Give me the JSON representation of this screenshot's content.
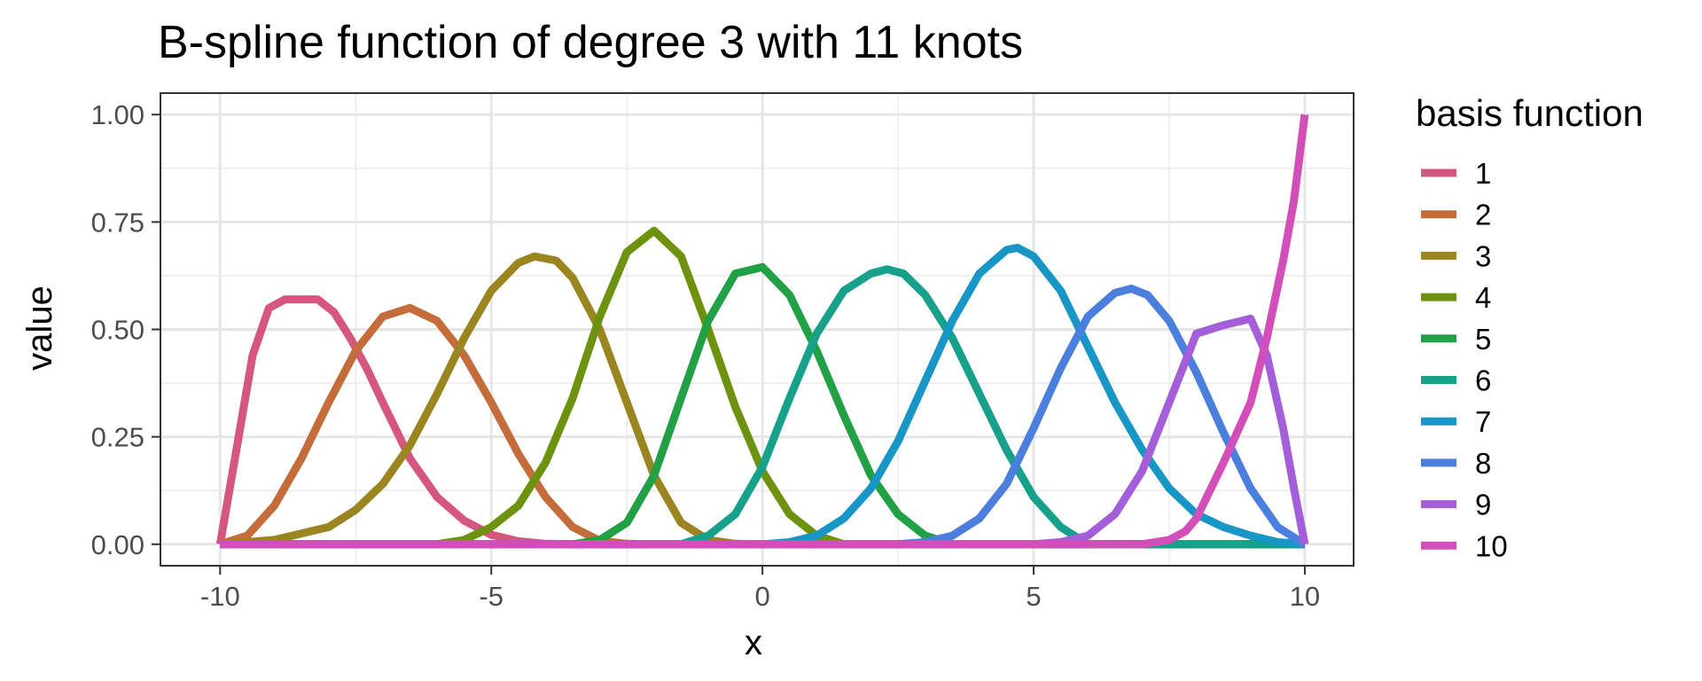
{
  "chart_data": {
    "type": "line",
    "title": "B-spline function of degree 3 with 11 knots",
    "xlabel": "x",
    "ylabel": "value",
    "xlim": [
      -11.1,
      10.9
    ],
    "ylim": [
      -0.05,
      1.05
    ],
    "x_ticks": [
      -10,
      -5,
      0,
      5,
      10
    ],
    "x_tick_labels": [
      "-10",
      "-5",
      "0",
      "5",
      "10"
    ],
    "y_ticks": [
      0,
      0.25,
      0.5,
      0.75,
      1
    ],
    "y_tick_labels": [
      "0.00",
      "0.25",
      "0.50",
      "0.75",
      "1.00"
    ],
    "grid": true,
    "legend": {
      "title": "basis function",
      "position": "right"
    },
    "series": [
      {
        "name": "1",
        "color": "#D5577E",
        "x": [
          -10,
          -9.7,
          -9.4,
          -9.1,
          -8.8,
          -8.5,
          -8.2,
          -7.9,
          -7.6,
          -7.3,
          -7.0,
          -6.5,
          -6.0,
          -5.5,
          -5.0,
          -4.5,
          -4.0,
          -3.0,
          -2.0,
          0,
          5,
          10
        ],
        "y": [
          0,
          0.22,
          0.44,
          0.55,
          0.57,
          0.57,
          0.57,
          0.54,
          0.48,
          0.41,
          0.33,
          0.2,
          0.11,
          0.055,
          0.022,
          0.007,
          0.001,
          0,
          0,
          0,
          0,
          0
        ]
      },
      {
        "name": "2",
        "color": "#C46C3A",
        "x": [
          -10,
          -9.5,
          -9.0,
          -8.5,
          -8.0,
          -7.5,
          -7.0,
          -6.5,
          -6.0,
          -5.5,
          -5.0,
          -4.5,
          -4.0,
          -3.5,
          -3.0,
          -2.5,
          -2.0,
          0,
          5,
          10
        ],
        "y": [
          0,
          0.02,
          0.09,
          0.2,
          0.33,
          0.45,
          0.53,
          0.55,
          0.52,
          0.44,
          0.33,
          0.21,
          0.11,
          0.04,
          0.008,
          0.001,
          0,
          0,
          0,
          0
        ]
      },
      {
        "name": "3",
        "color": "#9A8521",
        "x": [
          -10,
          -9.0,
          -8.0,
          -7.5,
          -7.0,
          -6.5,
          -6.0,
          -5.5,
          -5.0,
          -4.5,
          -4.2,
          -3.8,
          -3.5,
          -3.0,
          -2.5,
          -2.0,
          -1.5,
          -1.0,
          -0.5,
          0,
          5,
          10
        ],
        "y": [
          0,
          0.01,
          0.04,
          0.08,
          0.14,
          0.23,
          0.35,
          0.48,
          0.59,
          0.655,
          0.67,
          0.66,
          0.62,
          0.5,
          0.33,
          0.16,
          0.05,
          0.01,
          0.001,
          0,
          0,
          0
        ]
      },
      {
        "name": "4",
        "color": "#6D920F",
        "x": [
          -10,
          -6.0,
          -5.5,
          -5.0,
          -4.5,
          -4.0,
          -3.5,
          -3.0,
          -2.5,
          -2.0,
          -1.5,
          -1.0,
          -0.5,
          0,
          0.5,
          1.0,
          1.5,
          5,
          10
        ],
        "y": [
          0,
          0,
          0.01,
          0.04,
          0.09,
          0.19,
          0.34,
          0.53,
          0.68,
          0.73,
          0.67,
          0.5,
          0.32,
          0.17,
          0.07,
          0.02,
          0,
          0,
          0
        ]
      },
      {
        "name": "5",
        "color": "#21A045",
        "x": [
          -10,
          -3.5,
          -3.0,
          -2.5,
          -2.0,
          -1.5,
          -1.0,
          -0.5,
          0,
          0.5,
          1.0,
          1.5,
          2.0,
          2.5,
          3.0,
          3.5,
          5,
          10
        ],
        "y": [
          0,
          0,
          0.01,
          0.05,
          0.16,
          0.34,
          0.52,
          0.63,
          0.645,
          0.58,
          0.45,
          0.3,
          0.16,
          0.07,
          0.02,
          0,
          0,
          0
        ]
      },
      {
        "name": "6",
        "color": "#17A08A",
        "x": [
          -10,
          -1.5,
          -1.0,
          -0.5,
          0,
          0.5,
          1.0,
          1.5,
          2.0,
          2.3,
          2.6,
          3.0,
          3.5,
          4.0,
          4.5,
          5.0,
          5.5,
          6.0,
          10
        ],
        "y": [
          0,
          0,
          0.02,
          0.07,
          0.18,
          0.34,
          0.49,
          0.59,
          0.63,
          0.64,
          0.63,
          0.58,
          0.48,
          0.35,
          0.22,
          0.11,
          0.04,
          0,
          0
        ]
      },
      {
        "name": "7",
        "color": "#1896C6",
        "x": [
          -10,
          0,
          0.5,
          1.0,
          1.5,
          2.0,
          2.5,
          3.0,
          3.5,
          4.0,
          4.5,
          4.7,
          5.0,
          5.5,
          6.0,
          6.5,
          7.0,
          7.5,
          8.0,
          8.5,
          9.0,
          9.5,
          10.0
        ],
        "y": [
          0,
          0,
          0.005,
          0.02,
          0.06,
          0.13,
          0.24,
          0.38,
          0.52,
          0.63,
          0.685,
          0.69,
          0.67,
          0.59,
          0.46,
          0.33,
          0.22,
          0.13,
          0.07,
          0.04,
          0.02,
          0.005,
          0
        ]
      },
      {
        "name": "8",
        "color": "#4B7FDD",
        "x": [
          -10,
          2.5,
          3.0,
          3.5,
          4.0,
          4.5,
          5.0,
          5.5,
          6.0,
          6.5,
          6.8,
          7.1,
          7.5,
          8.0,
          8.5,
          9.0,
          9.5,
          10.0
        ],
        "y": [
          0,
          0,
          0.005,
          0.02,
          0.06,
          0.14,
          0.27,
          0.41,
          0.53,
          0.585,
          0.595,
          0.58,
          0.52,
          0.4,
          0.26,
          0.13,
          0.04,
          0
        ]
      },
      {
        "name": "9",
        "color": "#A45ED9",
        "x": [
          -10,
          5.0,
          5.5,
          6.0,
          6.5,
          7.0,
          7.5,
          8.0,
          8.5,
          9.0,
          9.3,
          9.6,
          9.8,
          10.0
        ],
        "y": [
          0,
          0,
          0.005,
          0.02,
          0.07,
          0.17,
          0.33,
          0.49,
          0.51,
          0.525,
          0.44,
          0.27,
          0.13,
          0
        ]
      },
      {
        "name": "10",
        "color": "#D24FB9",
        "x": [
          -10,
          7.0,
          7.5,
          7.8,
          8.0,
          8.5,
          9.0,
          9.3,
          9.6,
          9.8,
          10.0
        ],
        "y": [
          0,
          0,
          0.01,
          0.03,
          0.06,
          0.19,
          0.33,
          0.48,
          0.66,
          0.8,
          1.0
        ]
      }
    ]
  }
}
